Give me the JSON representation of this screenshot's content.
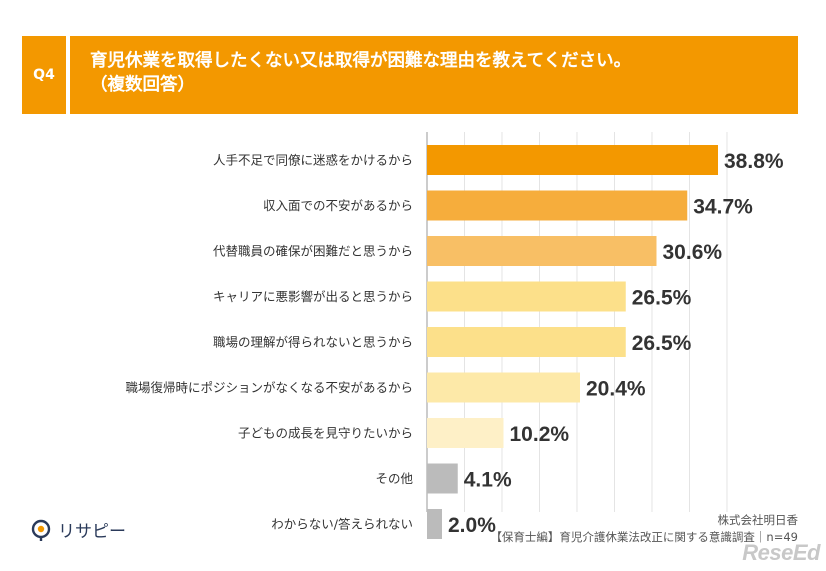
{
  "header": {
    "badge": "Q4",
    "question_line1": "育児休業を取得したくない又は取得が困難な理由を教えてください。",
    "question_line2": "（複数回答）"
  },
  "chart_data": {
    "type": "bar",
    "orientation": "horizontal",
    "categories": [
      "人手不足で同僚に迷惑をかけるから",
      "収入面での不安があるから",
      "代替職員の確保が困難だと思うから",
      "キャリアに悪影響が出ると思うから",
      "職場の理解が得られないと思うから",
      "職場復帰時にポジションがなくなる不安があるから",
      "子どもの成長を見守りたいから",
      "その他",
      "わからない/答えられない"
    ],
    "values": [
      38.8,
      34.7,
      30.6,
      26.5,
      26.5,
      20.4,
      10.2,
      4.1,
      2.0
    ],
    "value_labels": [
      "38.8%",
      "34.7%",
      "30.6%",
      "26.5%",
      "26.5%",
      "20.4%",
      "10.2%",
      "4.1%",
      "2.0%"
    ],
    "bar_colors": [
      "#F39800",
      "#F6AD3C",
      "#F8BF65",
      "#FCE08A",
      "#FCE08A",
      "#FDE9A8",
      "#FEF0C7",
      "#BBBBBB",
      "#BBBBBB"
    ],
    "xlim": [
      0,
      40
    ],
    "grid": true
  },
  "footer": {
    "company": "株式会社明日香",
    "survey": "【保育士編】育児介護休業法改正に関する意識調査｜n=49"
  },
  "logo": {
    "text": "リサピー"
  },
  "watermark": {
    "text": "ReseEd"
  }
}
